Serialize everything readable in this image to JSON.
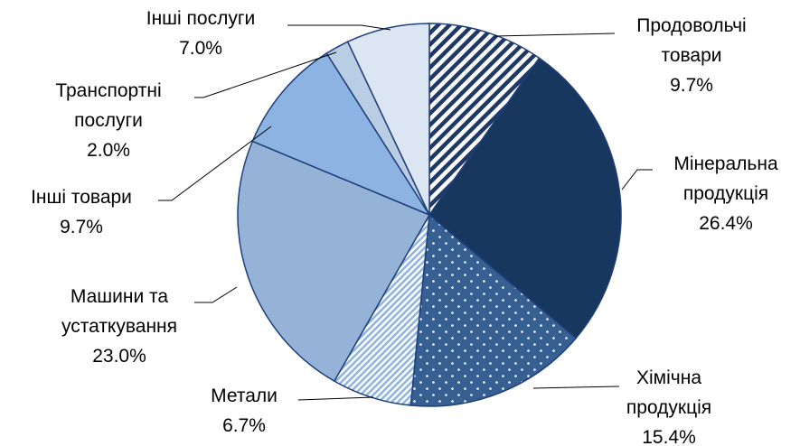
{
  "chart_data": {
    "type": "pie",
    "categories": [
      "Продовольчі товари",
      "Мінеральна продукція",
      "Хімічна продукція",
      "Метали",
      "Машини та устаткування",
      "Інші товари",
      "Транспортні послуги",
      "Інші послуги"
    ],
    "values": [
      9.7,
      26.4,
      15.4,
      6.7,
      23.0,
      9.7,
      2.0,
      7.0
    ],
    "value_labels": [
      "9.7%",
      "26.4%",
      "15.4%",
      "6.7%",
      "23.0%",
      "9.7%",
      "2.0%",
      "7.0%"
    ],
    "colors": [
      "#1f3864",
      "#17375e",
      "#376092",
      "#8eb4e3",
      "#95b3d7",
      "#8db3e2",
      "#b9cde5",
      "#dce6f2"
    ],
    "patterns": [
      "diagonal-stripes",
      null,
      "dots",
      "diagonal-stripes",
      null,
      null,
      null,
      null
    ]
  }
}
